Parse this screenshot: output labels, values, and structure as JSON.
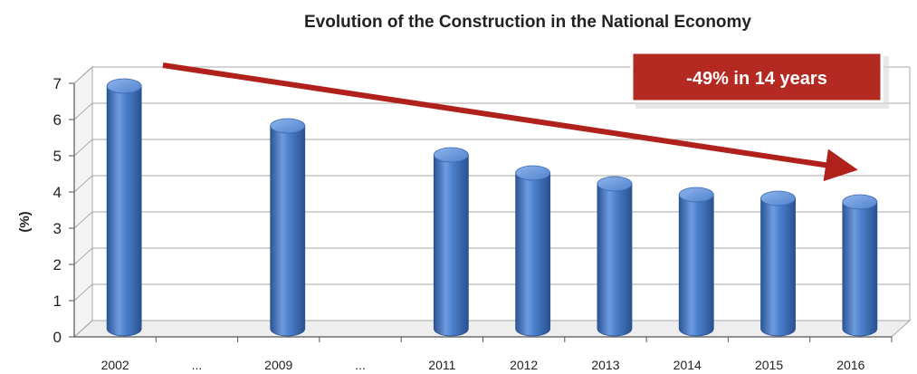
{
  "chart_data": {
    "type": "bar",
    "title": "Evolution of the Construction in the National Economy",
    "ylabel": "(%)",
    "xlabel": "",
    "categories": [
      "2002",
      "...",
      "2009",
      "...",
      "2011",
      "2012",
      "2013",
      "2014",
      "2015",
      "2016"
    ],
    "values": [
      6.7,
      null,
      5.6,
      null,
      4.8,
      4.3,
      4.0,
      3.7,
      3.6,
      3.5
    ],
    "ylim": [
      0,
      7
    ],
    "yticks": [
      "0",
      "1",
      "2",
      "3",
      "4",
      "5",
      "6",
      "7"
    ],
    "grid": true,
    "annotation": "-49% in 14 years",
    "colors": {
      "bar": "#4a7fcb",
      "bar_dark": "#2a5595",
      "bar_light": "#8fb4ea",
      "arrow": "#b0211b",
      "callout": "#b42a22",
      "grid": "#a8a8a8"
    }
  }
}
